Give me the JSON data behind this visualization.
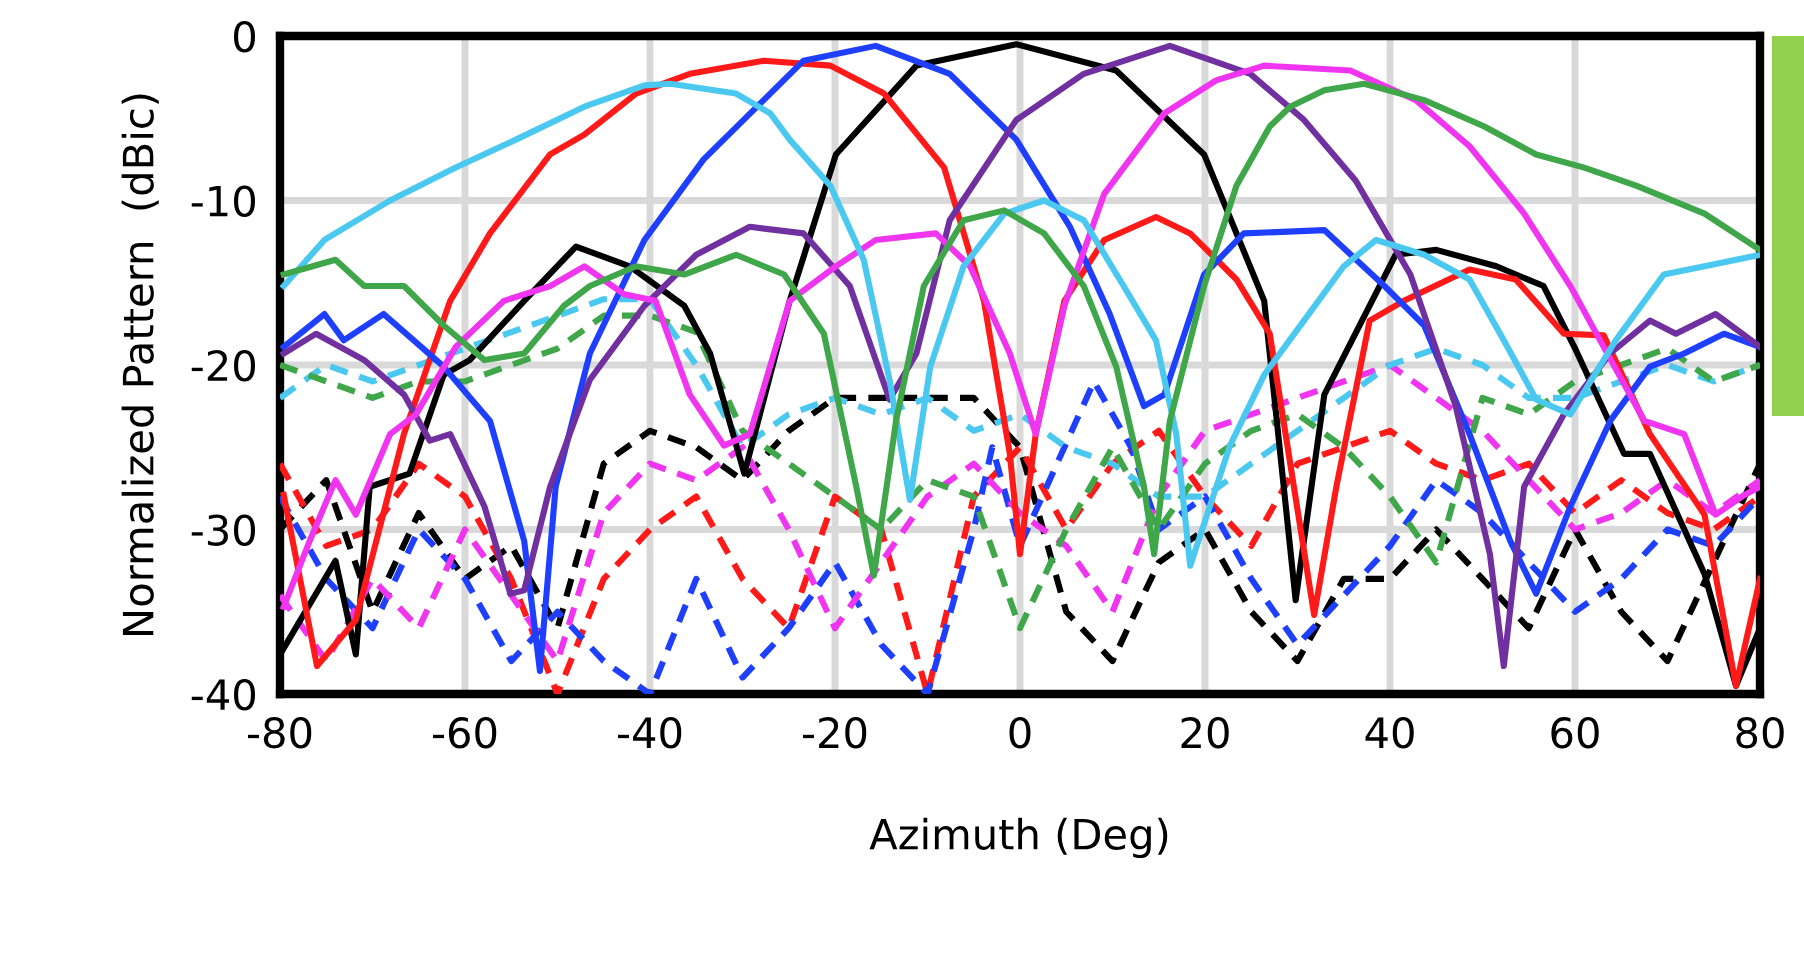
{
  "chart_data": {
    "type": "line",
    "xlabel": "Azimuth (Deg)",
    "ylabel": "Normalized Pattern  (dBic)",
    "xlim": [
      -80,
      80
    ],
    "ylim": [
      -40,
      0
    ],
    "xticks": [
      -80,
      -60,
      -40,
      -20,
      0,
      20,
      40,
      60,
      80
    ],
    "yticks": [
      -40,
      -30,
      -20,
      -10,
      0
    ],
    "grid": true,
    "legend": false,
    "marker": "none",
    "series": [
      {
        "color": "#000000",
        "line_style": "dashed",
        "x": [
          -80,
          -75,
          -70,
          -65,
          -60,
          -55,
          -50,
          -45,
          -40,
          -35,
          -30,
          -25,
          -20,
          -15,
          -10,
          -5,
          0,
          5,
          10,
          15,
          20,
          25,
          30,
          35,
          40,
          45,
          50,
          55,
          60,
          65,
          70,
          75,
          80
        ],
        "values": [
          -30,
          -27,
          -35,
          -29,
          -33,
          -31,
          -36,
          -26,
          -24,
          -25,
          -27,
          -24,
          -22,
          -22,
          -22,
          -22,
          -25,
          -35,
          -38,
          -32,
          -30,
          -35,
          -38,
          -33,
          -33,
          -30,
          -33,
          -36,
          -30,
          -35,
          -38,
          -32,
          -26
        ]
      },
      {
        "color": "#ff1a1a",
        "line_style": "dashed",
        "x": [
          -80,
          -75,
          -70,
          -65,
          -60,
          -55,
          -50,
          -45,
          -40,
          -35,
          -30,
          -25,
          -20,
          -15,
          -10,
          -5,
          0,
          5,
          10,
          15,
          20,
          25,
          30,
          35,
          40,
          45,
          50,
          55,
          60,
          65,
          70,
          75,
          80
        ],
        "values": [
          -26,
          -31,
          -30,
          -26,
          -28,
          -33,
          -40,
          -33,
          -30,
          -28,
          -33,
          -36,
          -28,
          -30,
          -40,
          -28,
          -25,
          -30,
          -26,
          -24,
          -28,
          -31,
          -26,
          -25,
          -24,
          -26,
          -27,
          -26,
          -29,
          -27,
          -29,
          -30,
          -28
        ]
      },
      {
        "color": "#1f3fff",
        "line_style": "dashed",
        "x": [
          -80,
          -75,
          -70,
          -65,
          -60,
          -55,
          -50,
          -45,
          -40,
          -35,
          -30,
          -25,
          -20,
          -15,
          -10,
          -5,
          -3,
          0,
          4,
          8,
          12,
          15,
          20,
          25,
          30,
          35,
          40,
          45,
          50,
          55,
          60,
          65,
          70,
          75,
          80
        ],
        "values": [
          -28,
          -33,
          -36,
          -30,
          -33,
          -38,
          -35,
          -38,
          -40,
          -33,
          -39,
          -36,
          -32,
          -37,
          -40,
          -30,
          -25,
          -31,
          -26,
          -21,
          -25,
          -30,
          -28,
          -33,
          -37,
          -34,
          -31,
          -27,
          -29,
          -32,
          -35,
          -33,
          -30,
          -31,
          -28
        ]
      },
      {
        "color": "#f035f0",
        "line_style": "dashed",
        "x": [
          -80,
          -75,
          -70,
          -65,
          -60,
          -55,
          -50,
          -45,
          -40,
          -35,
          -30,
          -25,
          -20,
          -15,
          -10,
          -5,
          0,
          5,
          10,
          15,
          20,
          25,
          30,
          35,
          40,
          45,
          50,
          55,
          60,
          65,
          70,
          75,
          80
        ],
        "values": [
          -34,
          -38,
          -33,
          -36,
          -30,
          -34,
          -38,
          -29,
          -26,
          -27,
          -25,
          -30,
          -36,
          -32,
          -28,
          -26,
          -29,
          -31,
          -35,
          -28,
          -24,
          -23,
          -22,
          -21,
          -20,
          -22,
          -24,
          -27,
          -30,
          -29,
          -27,
          -29,
          -27
        ]
      },
      {
        "color": "#4ac8f0",
        "line_style": "dashed",
        "x": [
          -80,
          -75,
          -70,
          -65,
          -60,
          -55,
          -50,
          -45,
          -40,
          -35,
          -30,
          -25,
          -20,
          -15,
          -10,
          -5,
          0,
          5,
          10,
          15,
          20,
          25,
          30,
          35,
          40,
          45,
          50,
          55,
          60,
          65,
          70,
          75,
          80
        ],
        "values": [
          -22,
          -20,
          -21,
          -20,
          -19,
          -18,
          -17,
          -16,
          -16,
          -20,
          -25,
          -23,
          -22,
          -23,
          -22,
          -24,
          -23,
          -25,
          -26,
          -28,
          -28,
          -26,
          -24,
          -22,
          -20,
          -19,
          -20,
          -22,
          -22,
          -21,
          -20,
          -21,
          -20
        ]
      },
      {
        "color": "#3fa64a",
        "line_style": "dashed",
        "x": [
          -80,
          -75,
          -70,
          -65,
          -60,
          -55,
          -50,
          -45,
          -40,
          -35,
          -30,
          -25,
          -20,
          -15,
          -10,
          -5,
          0,
          5,
          10,
          15,
          20,
          25,
          30,
          35,
          40,
          45,
          50,
          55,
          60,
          65,
          70,
          75,
          80
        ],
        "values": [
          -20,
          -21,
          -22,
          -21,
          -21,
          -20,
          -19,
          -17,
          -17,
          -18,
          -24,
          -26,
          -28,
          -30,
          -27,
          -28,
          -36,
          -30,
          -25,
          -30,
          -26,
          -24,
          -23,
          -25,
          -28,
          -32,
          -22,
          -23,
          -21,
          -20,
          -19,
          -21,
          -20
        ]
      },
      {
        "color": "#000000",
        "line_style": "solid",
        "x": [
          -80,
          -74,
          -71.8,
          -70.3,
          -66,
          -62.3,
          -59.5,
          -53.6,
          -48,
          -42.2,
          -36.3,
          -33.5,
          -29.8,
          -24.9,
          -19.9,
          -11.2,
          -0.4,
          10.4,
          19.9,
          26.4,
          29.8,
          32.9,
          40.6,
          45,
          51.5,
          56.6,
          60.1,
          65.3,
          68.1,
          74,
          77.4,
          80
        ],
        "values": [
          -37.6,
          -31.9,
          -37.6,
          -27.4,
          -26.6,
          -20.6,
          -19.7,
          -16.1,
          -12.8,
          -14,
          -16.4,
          -19.3,
          -26.6,
          -16.1,
          -7.2,
          -1.8,
          -0.5,
          -2.1,
          -7.2,
          -16.1,
          -34.3,
          -21.8,
          -13.3,
          -13,
          -14,
          -15.2,
          -19.1,
          -25.4,
          -25.4,
          -32.7,
          -39.5,
          -36
        ]
      },
      {
        "color": "#ff1a1a",
        "line_style": "solid",
        "x": [
          -79.6,
          -76,
          -71.8,
          -66.6,
          -61.6,
          -57.3,
          -50.8,
          -47.1,
          -41.5,
          -35.7,
          -27.7,
          -20.5,
          -14.7,
          -8.2,
          -3.9,
          -1.1,
          0,
          1.7,
          4.8,
          9.1,
          14.7,
          18.4,
          23.4,
          27,
          31.8,
          34.2,
          37.8,
          41.5,
          48.6,
          53.6,
          58.8,
          63.1,
          68.1,
          74,
          77.4,
          80
        ],
        "values": [
          -27.9,
          -38.3,
          -35.5,
          -24.2,
          -16.1,
          -12,
          -7.2,
          -6,
          -3.5,
          -2.3,
          -1.5,
          -1.8,
          -3.5,
          -8,
          -16.1,
          -25.4,
          -31.5,
          -24.2,
          -16.1,
          -12.4,
          -11,
          -12,
          -14.8,
          -18.1,
          -35.2,
          -27.4,
          -17.3,
          -16.1,
          -14.2,
          -14.8,
          -18.1,
          -18.2,
          -24.2,
          -29.1,
          -39.5,
          -33
        ]
      },
      {
        "color": "#1f3fff",
        "line_style": "solid",
        "x": [
          -79.6,
          -75.2,
          -73.1,
          -68.8,
          -62.3,
          -57.3,
          -53.6,
          -51.9,
          -50.2,
          -46.5,
          -40.6,
          -34.2,
          -27,
          -23.4,
          -15.6,
          -7.6,
          -0.4,
          5.4,
          9.7,
          13.4,
          15.6,
          19.9,
          24.2,
          32.9,
          39.4,
          43.7,
          48.6,
          53,
          55.8,
          59.5,
          63.8,
          68.1,
          71.8,
          76.1,
          80
        ],
        "values": [
          -18.9,
          -16.9,
          -18.5,
          -16.9,
          -20.1,
          -23.4,
          -30.7,
          -38.6,
          -27.4,
          -19.3,
          -12.4,
          -7.5,
          -3.5,
          -1.5,
          -0.6,
          -2.3,
          -6.3,
          -11.6,
          -16.9,
          -22.5,
          -21.8,
          -14.5,
          -12,
          -11.8,
          -15.2,
          -17.6,
          -24.2,
          -30.7,
          -33.9,
          -28.6,
          -23.4,
          -20.1,
          -19.3,
          -18.1,
          -18.9
        ]
      },
      {
        "color": "#7030a0",
        "line_style": "solid",
        "x": [
          -79.6,
          -76.1,
          -70.9,
          -66.6,
          -63.8,
          -61.6,
          -57.9,
          -55.1,
          -53.6,
          -50.8,
          -46.5,
          -40.6,
          -35,
          -29.2,
          -23.4,
          -18.4,
          -14.1,
          -11.2,
          -7.6,
          -0.4,
          6.9,
          16.2,
          24.9,
          30.7,
          36.3,
          42.2,
          47.1,
          50.8,
          52.3,
          54.5,
          58.8,
          63.8,
          68.1,
          70.9,
          75.2,
          80
        ],
        "values": [
          -19.3,
          -18.1,
          -19.7,
          -21.8,
          -24.6,
          -24.2,
          -28.6,
          -33.9,
          -33.7,
          -27.4,
          -20.9,
          -16.4,
          -13.3,
          -11.6,
          -12,
          -15.2,
          -22.1,
          -19.3,
          -11.2,
          -5.1,
          -2.3,
          -0.6,
          -2.3,
          -5.1,
          -8.8,
          -14.5,
          -22.5,
          -31.5,
          -38.3,
          -27.4,
          -23,
          -19.3,
          -17.3,
          -18.1,
          -16.9,
          -18.9
        ]
      },
      {
        "color": "#f035f0",
        "line_style": "solid",
        "x": [
          -79.6,
          -76.8,
          -74,
          -71.8,
          -68.1,
          -65.3,
          -61,
          -55.8,
          -50.8,
          -47.1,
          -42.8,
          -39.4,
          -35.7,
          -32,
          -29.2,
          -24.9,
          -19.9,
          -15.6,
          -9.1,
          -5.4,
          -1.1,
          1.7,
          4.8,
          9.1,
          15.6,
          21.2,
          26.4,
          35.7,
          42.8,
          48.6,
          54.5,
          59.5,
          63.1,
          67.5,
          71.8,
          75.2,
          78.3,
          80
        ],
        "values": [
          -34.7,
          -30.7,
          -27,
          -29.1,
          -24.2,
          -23,
          -18.9,
          -16.1,
          -15.2,
          -14,
          -15.7,
          -16.1,
          -21.8,
          -24.9,
          -24.2,
          -16.1,
          -14,
          -12.4,
          -12,
          -14,
          -19.3,
          -24.2,
          -16.4,
          -9.6,
          -4.7,
          -2.7,
          -1.8,
          -2.1,
          -3.9,
          -6.7,
          -10.8,
          -15.2,
          -18.9,
          -23.4,
          -24.2,
          -29.1,
          -27.9,
          -27.4
        ]
      },
      {
        "color": "#4ac8f0",
        "line_style": "solid",
        "x": [
          -79.6,
          -75.2,
          -68.1,
          -61,
          -54.5,
          -47.1,
          -40.6,
          -37.8,
          -30.7,
          -27,
          -24.9,
          -20.5,
          -16.9,
          -14.1,
          -11.9,
          -9.7,
          -6.1,
          -1.7,
          2.6,
          6.9,
          11.2,
          14.7,
          16.9,
          18.4,
          22.7,
          26.4,
          30.7,
          35,
          38.5,
          43.7,
          48.6,
          52.3,
          55.8,
          59.5,
          64.4,
          69.6,
          74,
          80
        ],
        "values": [
          -15.2,
          -12.4,
          -10,
          -8,
          -6.3,
          -4.3,
          -3,
          -2.9,
          -3.5,
          -4.7,
          -6.3,
          -9.1,
          -13.6,
          -20.9,
          -28.2,
          -20.1,
          -14,
          -10.8,
          -10,
          -11.2,
          -15.2,
          -18.5,
          -24.2,
          -32.2,
          -24.9,
          -20.6,
          -17.3,
          -14,
          -12.4,
          -13.3,
          -14.8,
          -18.5,
          -22.1,
          -23,
          -18.5,
          -14.5,
          -14,
          -13.3
        ]
      },
      {
        "color": "#3fa64a",
        "line_style": "solid",
        "x": [
          -79.6,
          -74,
          -70.9,
          -66.6,
          -62.3,
          -57.9,
          -53.6,
          -49.3,
          -46.5,
          -41.5,
          -36.3,
          -30.7,
          -25.5,
          -21.2,
          -17.7,
          -15.8,
          -13.4,
          -10.4,
          -6.1,
          -1.7,
          2.6,
          6.9,
          10.4,
          13.4,
          14.5,
          16.2,
          19.9,
          23.4,
          27,
          29.2,
          32.9,
          37.2,
          43.7,
          50.2,
          55.8,
          61,
          66.6,
          74,
          80
        ],
        "values": [
          -14.5,
          -13.6,
          -15.2,
          -15.2,
          -17.6,
          -19.7,
          -19.3,
          -16.4,
          -15.2,
          -14,
          -14.5,
          -13.3,
          -14.5,
          -18.1,
          -27.4,
          -32.8,
          -23.4,
          -15.2,
          -11.2,
          -10.6,
          -12,
          -15.2,
          -20.1,
          -27.4,
          -31.5,
          -23.4,
          -15.2,
          -9.1,
          -5.5,
          -4.3,
          -3.3,
          -2.9,
          -3.9,
          -5.5,
          -7.2,
          -8,
          -9.1,
          -10.8,
          -13
        ]
      }
    ]
  }
}
